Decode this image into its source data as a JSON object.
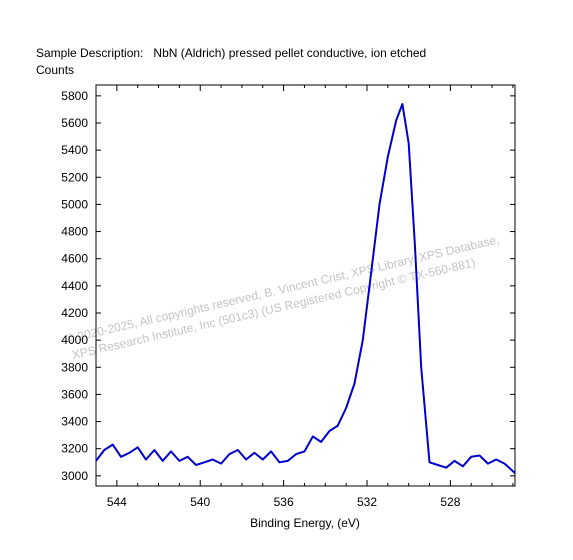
{
  "header": {
    "description_label": "Sample Description:",
    "description_value": "NbN (Aldrich) pressed pellet conductive, ion etched"
  },
  "watermark": {
    "line1": "©  2020-2025,  All copyrights reserved,   B. Vincent Crist,  XPS Library, XPS Database,",
    "line2": "XPS Research Institute, Inc (501c3)   (US Registered Copyright © TX-560-881)"
  },
  "chart_data": {
    "type": "line",
    "title": "",
    "xlabel": "Binding Energy, (eV)",
    "ylabel": "Counts",
    "xlim": [
      545.0,
      524.9
    ],
    "ylim": [
      2925,
      5880
    ],
    "x_reversed": true,
    "x_ticks": [
      544,
      540,
      536,
      532,
      528
    ],
    "y_ticks": [
      3000,
      3200,
      3400,
      3600,
      3800,
      4000,
      4200,
      4400,
      4600,
      4800,
      5000,
      5200,
      5400,
      5600,
      5800
    ],
    "grid": false,
    "series": [
      {
        "color": "#0000cc",
        "x": [
          545.0,
          544.6,
          544.2,
          543.8,
          543.4,
          543.0,
          542.6,
          542.2,
          541.8,
          541.4,
          541.0,
          540.6,
          540.2,
          539.8,
          539.4,
          539.0,
          538.6,
          538.2,
          537.8,
          537.4,
          537.0,
          536.6,
          536.2,
          535.8,
          535.4,
          535.0,
          534.6,
          534.2,
          533.8,
          533.4,
          533.0,
          532.6,
          532.2,
          531.8,
          531.4,
          531.0,
          530.6,
          530.3,
          530.0,
          529.7,
          529.4,
          529.0,
          528.6,
          528.2,
          527.8,
          527.4,
          527.0,
          526.6,
          526.2,
          525.8,
          525.4,
          524.9
        ],
        "values": [
          3110,
          3190,
          3230,
          3140,
          3170,
          3210,
          3120,
          3190,
          3110,
          3180,
          3110,
          3140,
          3080,
          3100,
          3120,
          3090,
          3160,
          3190,
          3120,
          3170,
          3120,
          3180,
          3100,
          3110,
          3160,
          3180,
          3290,
          3250,
          3330,
          3370,
          3500,
          3680,
          4000,
          4500,
          5000,
          5350,
          5620,
          5740,
          5450,
          4700,
          3800,
          3100,
          3080,
          3060,
          3110,
          3070,
          3140,
          3150,
          3090,
          3120,
          3090,
          3020
        ]
      }
    ]
  }
}
